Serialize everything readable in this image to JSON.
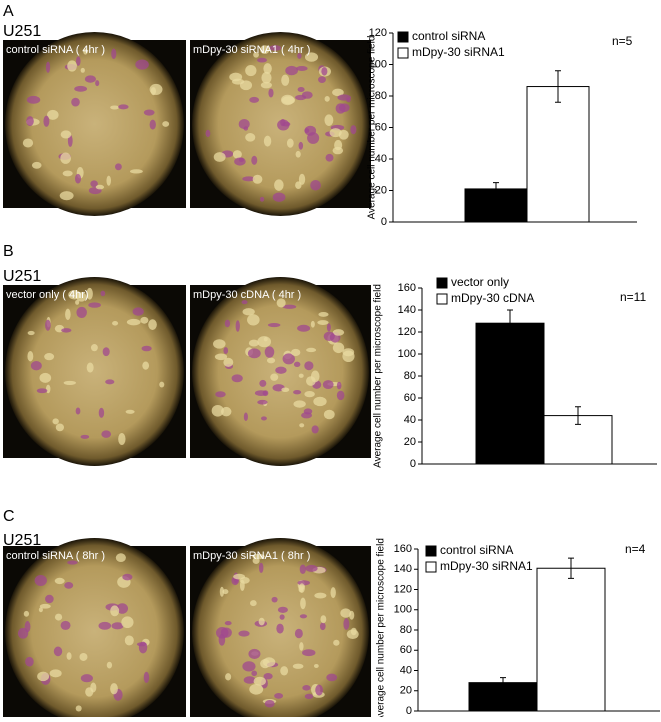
{
  "panels": [
    {
      "label": "A",
      "cell_line": "U251",
      "images": [
        "control siRNA ( 4hr )",
        "mDpy-30 siRNA1 ( 4hr )"
      ]
    },
    {
      "label": "B",
      "cell_line": "U251",
      "images": [
        "vector only ( 4hr)",
        "mDpy-30 cDNA ( 4hr )"
      ]
    },
    {
      "label": "C",
      "cell_line": "U251",
      "images": [
        "control siRNA ( 8hr )",
        "mDpy-30 siRNA1 ( 8hr )"
      ]
    }
  ],
  "chart_data": [
    {
      "type": "bar",
      "y_label": "Average cell number per microscope field",
      "annotation": "n=5",
      "legend": "upper left",
      "ylim": [
        0,
        120
      ],
      "yticks": [
        0,
        20,
        40,
        60,
        80,
        100,
        120
      ],
      "series": [
        {
          "name": "control siRNA",
          "color": "#000000",
          "values": [
            21
          ],
          "errors": [
            4
          ]
        },
        {
          "name": "mDpy-30 siRNA1",
          "color": "#ffffff",
          "values": [
            86
          ],
          "errors": [
            10
          ]
        }
      ]
    },
    {
      "type": "bar",
      "y_label": "Average cell number per microscope field",
      "annotation": "n=11",
      "legend": "upper left",
      "ylim": [
        0,
        160
      ],
      "yticks": [
        0,
        20,
        40,
        60,
        80,
        100,
        120,
        140,
        160
      ],
      "series": [
        {
          "name": "vector only",
          "color": "#000000",
          "values": [
            128
          ],
          "errors": [
            12
          ]
        },
        {
          "name": "mDpy-30 cDNA",
          "color": "#ffffff",
          "values": [
            44
          ],
          "errors": [
            8
          ]
        }
      ]
    },
    {
      "type": "bar",
      "y_label": "Average cell number per microscope field",
      "annotation": "n=4",
      "legend": "upper left",
      "ylim": [
        0,
        160
      ],
      "yticks": [
        0,
        20,
        40,
        60,
        80,
        100,
        120,
        140,
        160
      ],
      "series": [
        {
          "name": "control siRNA",
          "color": "#000000",
          "values": [
            28
          ],
          "errors": [
            5
          ]
        },
        {
          "name": "mDpy-30 siRNA1",
          "color": "#ffffff",
          "values": [
            141
          ],
          "errors": [
            10
          ]
        }
      ]
    }
  ]
}
